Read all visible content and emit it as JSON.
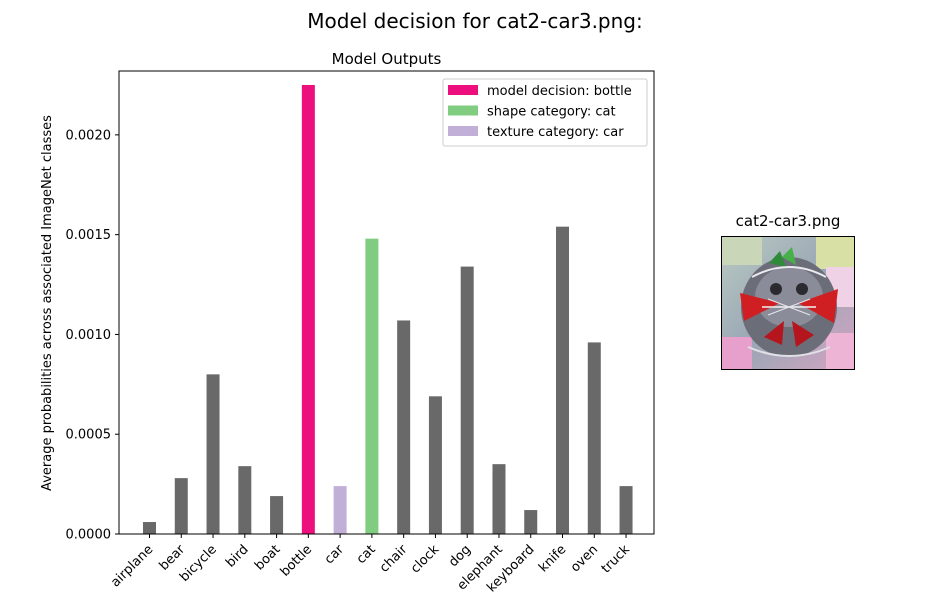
{
  "figure": {
    "suptitle": "Model decision for cat2-car3.png:",
    "image_title": "cat2-car3.png"
  },
  "chart_data": {
    "type": "bar",
    "title": "Model Outputs",
    "xlabel": "",
    "ylabel": "Average probabilities across associated ImageNet classes",
    "ylim": [
      0,
      0.00232
    ],
    "yticks": [
      "0.0000",
      "0.0005",
      "0.0010",
      "0.0015",
      "0.0020"
    ],
    "ytick_values": [
      0,
      0.0005,
      0.001,
      0.0015,
      0.002
    ],
    "categories": [
      "airplane",
      "bear",
      "bicycle",
      "bird",
      "boat",
      "bottle",
      "car",
      "cat",
      "chair",
      "clock",
      "dog",
      "elephant",
      "keyboard",
      "knife",
      "oven",
      "truck"
    ],
    "values": [
      6e-05,
      0.00028,
      0.0008,
      0.00034,
      0.00019,
      0.00225,
      0.00024,
      0.00148,
      0.00107,
      0.00069,
      0.00134,
      0.00035,
      0.00012,
      0.00154,
      0.00096,
      0.00024
    ],
    "bar_colors": [
      "#696969",
      "#696969",
      "#696969",
      "#696969",
      "#696969",
      "#ed0f7d",
      "#c2afd8",
      "#80cc80",
      "#696969",
      "#696969",
      "#696969",
      "#696969",
      "#696969",
      "#696969",
      "#696969",
      "#696969"
    ],
    "grid": false,
    "legend_position": "upper right",
    "legend": [
      {
        "label": "model decision: bottle",
        "color": "#ed0f7d"
      },
      {
        "label": "shape category: cat",
        "color": "#80cc80"
      },
      {
        "label": "texture category: car",
        "color": "#c2afd8"
      }
    ]
  }
}
